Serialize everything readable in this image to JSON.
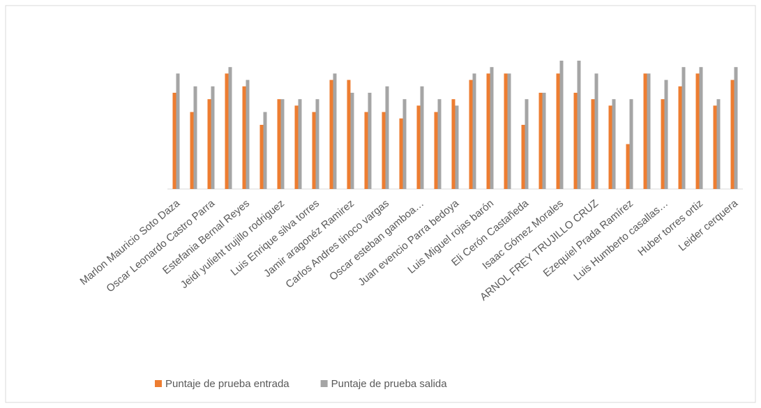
{
  "chart_data": {
    "type": "bar",
    "categories": [
      "Marlon Mauricio Soto Daza",
      null,
      "Oscar Leonardo Castro Parra",
      null,
      "Estefania Bernal Reyes",
      null,
      "Jeidi yulieht trujillo rodriguez",
      null,
      "Luis Enrique silva torres",
      null,
      "Jamir aragonéz Ramirez",
      null,
      "Carlos Andres tinoco vargas",
      null,
      "Oscar esteban gamboa…",
      null,
      "Juan evencio Parra bedoya",
      null,
      "Luis Miguel rojas barón",
      null,
      "Eli Cerón Castañeda",
      null,
      "Isaac Gómez Morales",
      null,
      "ARNOL FREY TRUJILLO CRUZ",
      null,
      "Ezequiel Prada Ramírez",
      null,
      "Luis Humberto casallas…",
      null,
      "Huber torres ortiz",
      null,
      "Leider cerquera"
    ],
    "series": [
      {
        "name": "Puntaje de prueba entrada",
        "color": "#ed7d31",
        "values": [
          15,
          12,
          14,
          18,
          16,
          10,
          14,
          13,
          12,
          17,
          17,
          12,
          12,
          11,
          13,
          12,
          14,
          17,
          18,
          18,
          10,
          15,
          18,
          15,
          14,
          13,
          7,
          18,
          14,
          16,
          18,
          13,
          17
        ]
      },
      {
        "name": "Puntaje de prueba salida",
        "color": "#a5a5a5",
        "values": [
          18,
          16,
          16,
          19,
          17,
          12,
          14,
          14,
          14,
          18,
          15,
          15,
          16,
          14,
          16,
          14,
          13,
          18,
          19,
          18,
          14,
          15,
          20,
          20,
          18,
          14,
          14,
          18,
          17,
          19,
          19,
          14,
          19
        ]
      }
    ],
    "ylim": [
      0,
      20
    ],
    "legend": "bottom"
  }
}
